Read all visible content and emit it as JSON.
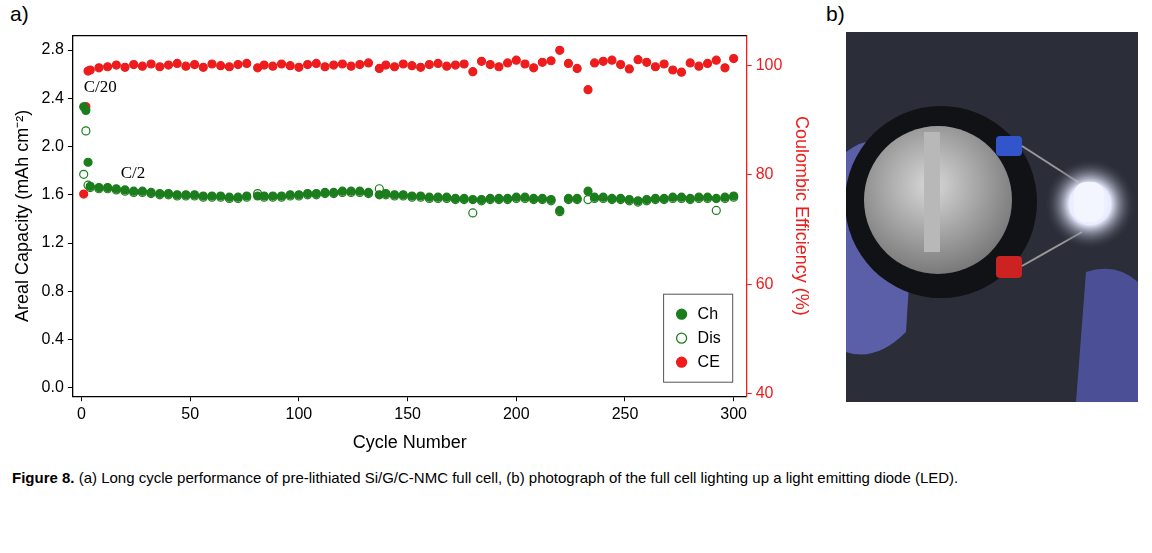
{
  "panel_labels": [
    "a)",
    "b)"
  ],
  "caption": {
    "label": "Figure 8.",
    "text": "(a) Long cycle performance of pre-lithiated Si/G/C-NMC full cell, (b) photograph of the full cell lighting up a light emitting diode (LED)."
  },
  "chart_data": {
    "type": "scatter",
    "x_label": "Cycle Number",
    "y_label": "Areal Capacity (mAh cm⁻²)",
    "y2_label": "Coulombic Efficiency (%)",
    "xlim": [
      -4,
      306
    ],
    "xticks": [
      0,
      50,
      100,
      150,
      200,
      250,
      300
    ],
    "ylim": [
      -0.07,
      2.92
    ],
    "yticks": [
      {
        "value": 0,
        "label": "0.0"
      },
      0.4,
      0.8,
      1.2,
      1.6,
      {
        "value": 2,
        "label": "2.0"
      },
      2.4,
      2.8
    ],
    "y2lim": [
      39.5,
      105.5
    ],
    "y2ticks": [
      40,
      60,
      80,
      100
    ],
    "grid": false,
    "legend": "lower right",
    "annotations": [
      {
        "text": "C/20",
        "x": 1,
        "y": 2.49
      },
      {
        "text": "C/2",
        "x": 18,
        "y": 1.78
      }
    ],
    "x": [
      1,
      2,
      3,
      4,
      8,
      12,
      16,
      20,
      24,
      28,
      32,
      36,
      40,
      44,
      48,
      52,
      56,
      60,
      64,
      68,
      72,
      76,
      81,
      84,
      88,
      92,
      96,
      100,
      104,
      108,
      112,
      116,
      120,
      124,
      128,
      132,
      137,
      140,
      144,
      148,
      152,
      156,
      160,
      164,
      168,
      172,
      176,
      180,
      184,
      188,
      192,
      196,
      200,
      204,
      208,
      212,
      216,
      220,
      224,
      228,
      233,
      236,
      240,
      244,
      248,
      252,
      256,
      260,
      264,
      268,
      272,
      276,
      280,
      284,
      288,
      292,
      296,
      300
    ],
    "series": [
      {
        "name": "Ch",
        "color": "#1b7d1b",
        "marker": "circle",
        "values": [
          2.33,
          2.3,
          1.87,
          1.67,
          1.66,
          1.66,
          1.65,
          1.64,
          1.63,
          1.63,
          1.62,
          1.61,
          1.61,
          1.6,
          1.6,
          1.6,
          1.59,
          1.59,
          1.59,
          1.58,
          1.58,
          1.59,
          1.59,
          1.59,
          1.59,
          1.59,
          1.6,
          1.6,
          1.61,
          1.61,
          1.62,
          1.62,
          1.63,
          1.63,
          1.63,
          1.62,
          1.6,
          1.61,
          1.6,
          1.6,
          1.59,
          1.59,
          1.58,
          1.58,
          1.58,
          1.57,
          1.57,
          1.56,
          1.56,
          1.57,
          1.57,
          1.57,
          1.58,
          1.58,
          1.57,
          1.57,
          1.56,
          1.47,
          1.57,
          1.57,
          1.63,
          1.58,
          1.58,
          1.57,
          1.57,
          1.56,
          1.55,
          1.56,
          1.57,
          1.57,
          1.58,
          1.58,
          1.57,
          1.58,
          1.58,
          1.57,
          1.58,
          1.59
        ]
      },
      {
        "name": "Dis",
        "color": "#1b7d1b",
        "marker": "open_circle",
        "values": [
          1.77,
          2.13,
          1.68,
          1.66,
          1.65,
          1.65,
          1.64,
          1.63,
          1.62,
          1.62,
          1.61,
          1.6,
          1.6,
          1.59,
          1.59,
          1.59,
          1.58,
          1.58,
          1.58,
          1.57,
          1.57,
          1.58,
          1.61,
          1.58,
          1.58,
          1.58,
          1.59,
          1.59,
          1.6,
          1.6,
          1.61,
          1.61,
          1.62,
          1.62,
          1.62,
          1.61,
          1.65,
          1.6,
          1.59,
          1.59,
          1.58,
          1.58,
          1.57,
          1.57,
          1.57,
          1.56,
          1.56,
          1.45,
          1.55,
          1.56,
          1.56,
          1.56,
          1.57,
          1.57,
          1.56,
          1.56,
          1.55,
          1.46,
          1.56,
          1.56,
          1.56,
          1.57,
          1.57,
          1.56,
          1.56,
          1.55,
          1.54,
          1.55,
          1.56,
          1.56,
          1.57,
          1.57,
          1.56,
          1.57,
          1.57,
          1.47,
          1.57,
          1.58
        ]
      },
      {
        "name": "CE",
        "color": "#ee1c1c",
        "marker": "circle",
        "axis": "y2",
        "values": [
          76.5,
          92.5,
          99.0,
          99.2,
          99.6,
          99.8,
          100.1,
          99.7,
          100.2,
          99.9,
          100.3,
          99.8,
          100.1,
          100.4,
          99.9,
          100.2,
          99.7,
          100.3,
          100.0,
          99.8,
          100.2,
          100.4,
          99.6,
          100.1,
          99.9,
          100.3,
          100.0,
          99.7,
          100.2,
          100.4,
          99.8,
          100.1,
          100.3,
          99.9,
          100.2,
          100.5,
          99.5,
          100.1,
          99.8,
          100.3,
          100.0,
          99.7,
          100.2,
          100.4,
          99.9,
          100.1,
          100.3,
          98.9,
          100.8,
          100.2,
          99.8,
          100.5,
          101.0,
          100.3,
          99.6,
          100.6,
          100.9,
          102.8,
          100.4,
          99.5,
          95.6,
          100.5,
          100.8,
          101.0,
          100.2,
          99.4,
          101.1,
          100.6,
          99.8,
          100.3,
          99.2,
          98.8,
          100.5,
          99.9,
          100.4,
          101.0,
          99.6,
          101.3
        ]
      }
    ]
  }
}
